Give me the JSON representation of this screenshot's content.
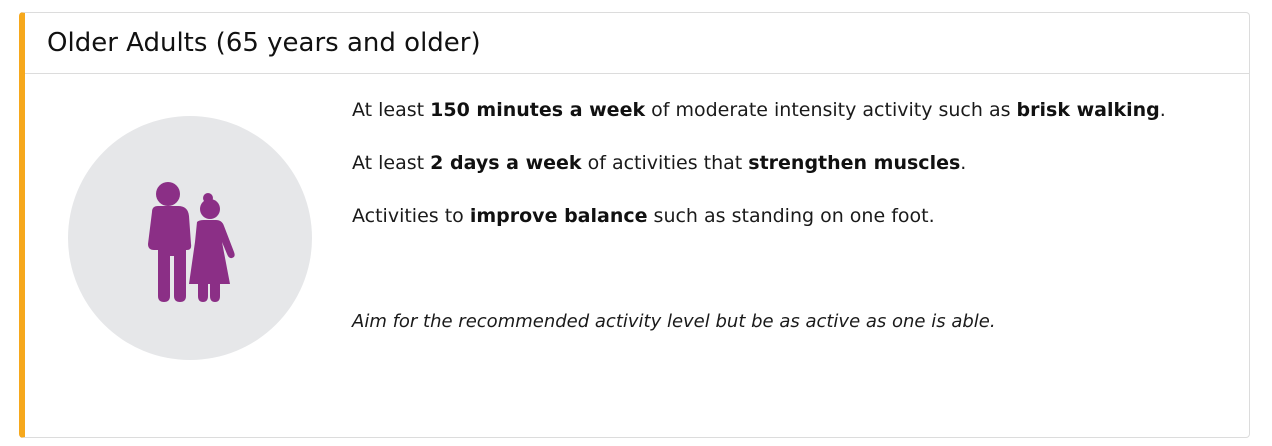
{
  "card": {
    "title": "Older Adults (65 years and older)",
    "accent_color": "#f6a81c",
    "icon": "older-couple-icon",
    "icon_color": "#8b2f86",
    "icon_background": "#e6e7e9"
  },
  "recommendations": [
    {
      "p1": "At least ",
      "b1": "150 minutes a week",
      "p2": " of moderate intensity activity such as ",
      "b2": "brisk walking",
      "p3": "."
    },
    {
      "p1": "At least ",
      "b1": "2 days a week",
      "p2": " of activities that ",
      "b2": "strengthen muscles",
      "p3": "."
    },
    {
      "p1": "Activities to ",
      "b1": "improve balance",
      "p2": " such as standing on one foot."
    }
  ],
  "note": "Aim for the recommended activity level but be as active as one is able."
}
